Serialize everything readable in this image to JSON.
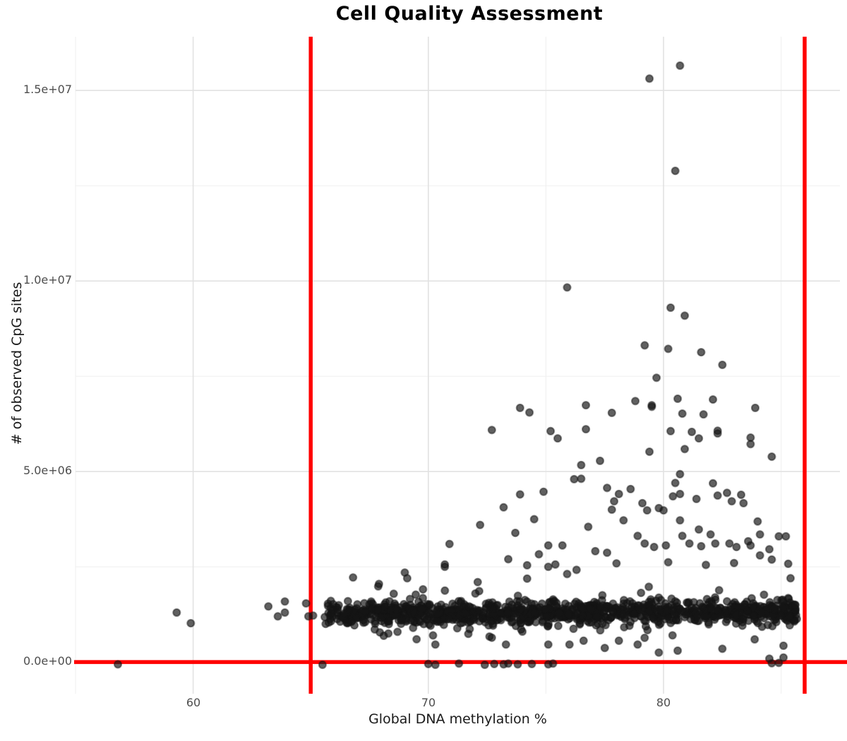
{
  "chart_data": {
    "type": "scatter",
    "title": "Cell Quality Assessment",
    "xlabel": "Global DNA methylation %",
    "ylabel": "# of observed CpG sites",
    "x_range": [
      55.0,
      87.5
    ],
    "y_range": [
      -830000,
      16410000
    ],
    "x_ticks": [
      {
        "value": 60,
        "label": "60"
      },
      {
        "value": 70,
        "label": "70"
      },
      {
        "value": 80,
        "label": "80"
      }
    ],
    "y_ticks": [
      {
        "value": 0,
        "label": "0.0e+00"
      },
      {
        "value": 5000000,
        "label": "5.0e+06"
      },
      {
        "value": 10000000,
        "label": "1.0e+07"
      },
      {
        "value": 15000000,
        "label": "1.5e+07"
      }
    ],
    "x_minor_ticks": [
      55,
      65,
      75,
      85
    ],
    "y_minor_ticks": [
      2500000,
      7500000,
      12500000
    ],
    "grid": {
      "major_color": "#e2e2e2",
      "minor_color": "#f0f0f0"
    },
    "reference_lines": {
      "vertical_x": [
        65,
        86
      ],
      "horizontal_y": [
        0
      ],
      "color": "#ff0000"
    },
    "point_style": {
      "color": "#151515",
      "fill_opacity": 0.68,
      "radius_px": 5.1
    },
    "points_y_unit": "millions of CpG sites",
    "points": [
      [
        56.8,
        -0.06
      ],
      [
        59.3,
        1.3
      ],
      [
        59.9,
        1.02
      ],
      [
        63.2,
        1.46
      ],
      [
        63.6,
        1.2
      ],
      [
        63.9,
        1.59
      ],
      [
        63.9,
        1.3
      ],
      [
        64.8,
        1.54
      ],
      [
        64.9,
        1.2
      ],
      [
        65.1,
        1.22
      ],
      [
        65.5,
        -0.07
      ],
      [
        70.0,
        -0.05
      ],
      [
        70.3,
        -0.07
      ],
      [
        71.3,
        -0.04
      ],
      [
        72.4,
        -0.07
      ],
      [
        72.8,
        -0.05
      ],
      [
        73.2,
        -0.06
      ],
      [
        73.4,
        -0.04
      ],
      [
        73.8,
        -0.06
      ],
      [
        74.4,
        -0.05
      ],
      [
        75.1,
        -0.06
      ],
      [
        75.3,
        -0.04
      ],
      [
        84.6,
        -0.03
      ],
      [
        84.9,
        -0.02
      ],
      [
        70.2,
        0.7
      ],
      [
        70.3,
        0.46
      ],
      [
        71.7,
        0.74
      ],
      [
        72.6,
        0.67
      ],
      [
        72.7,
        0.64
      ],
      [
        73.3,
        0.46
      ],
      [
        74.0,
        0.8
      ],
      [
        75.1,
        0.46
      ],
      [
        76.0,
        0.46
      ],
      [
        76.6,
        0.56
      ],
      [
        77.5,
        0.37
      ],
      [
        78.1,
        0.56
      ],
      [
        78.9,
        0.46
      ],
      [
        80.6,
        0.3
      ],
      [
        84.5,
        0.09
      ],
      [
        85.1,
        0.43
      ],
      [
        85.1,
        0.12
      ],
      [
        82.5,
        0.35
      ],
      [
        79.8,
        0.25
      ],
      [
        68.3,
        0.75
      ],
      [
        69.5,
        0.6
      ],
      [
        66.8,
        2.22
      ],
      [
        67.9,
        2.05
      ],
      [
        69.0,
        2.35
      ],
      [
        69.1,
        2.2
      ],
      [
        70.7,
        2.5
      ],
      [
        70.7,
        2.56
      ],
      [
        72.0,
        1.8
      ],
      [
        72.1,
        2.1
      ],
      [
        73.4,
        2.7
      ],
      [
        74.2,
        2.54
      ],
      [
        74.2,
        2.19
      ],
      [
        74.7,
        2.83
      ],
      [
        75.1,
        2.5
      ],
      [
        75.4,
        2.56
      ],
      [
        75.9,
        2.31
      ],
      [
        76.3,
        2.42
      ],
      [
        78.0,
        2.59
      ],
      [
        80.2,
        2.62
      ],
      [
        81.8,
        2.55
      ],
      [
        83.0,
        2.6
      ],
      [
        84.1,
        2.8
      ],
      [
        84.5,
        2.96
      ],
      [
        84.6,
        2.69
      ],
      [
        85.3,
        2.58
      ],
      [
        85.4,
        2.2
      ],
      [
        70.9,
        3.1
      ],
      [
        72.2,
        3.6
      ],
      [
        73.2,
        4.06
      ],
      [
        73.7,
        3.39
      ],
      [
        73.9,
        4.4
      ],
      [
        74.5,
        3.75
      ],
      [
        74.9,
        4.47
      ],
      [
        75.1,
        3.06
      ],
      [
        75.7,
        3.06
      ],
      [
        76.2,
        4.8
      ],
      [
        76.5,
        4.81
      ],
      [
        76.8,
        3.55
      ],
      [
        77.1,
        2.91
      ],
      [
        77.6,
        2.87
      ],
      [
        77.6,
        4.57
      ],
      [
        77.8,
        4.0
      ],
      [
        77.9,
        4.22
      ],
      [
        78.1,
        4.41
      ],
      [
        78.3,
        3.72
      ],
      [
        78.6,
        4.54
      ],
      [
        78.9,
        3.31
      ],
      [
        79.1,
        4.17
      ],
      [
        79.2,
        3.11
      ],
      [
        79.3,
        3.98
      ],
      [
        79.6,
        3.02
      ],
      [
        79.8,
        4.04
      ],
      [
        80.0,
        3.98
      ],
      [
        80.1,
        3.06
      ],
      [
        80.4,
        4.35
      ],
      [
        80.5,
        4.7
      ],
      [
        80.7,
        4.93
      ],
      [
        80.7,
        4.41
      ],
      [
        80.7,
        3.72
      ],
      [
        80.8,
        3.31
      ],
      [
        81.1,
        3.11
      ],
      [
        81.4,
        4.28
      ],
      [
        81.5,
        3.48
      ],
      [
        81.6,
        3.04
      ],
      [
        82.0,
        3.35
      ],
      [
        82.1,
        4.69
      ],
      [
        82.2,
        3.11
      ],
      [
        82.3,
        4.37
      ],
      [
        82.7,
        4.44
      ],
      [
        82.8,
        3.11
      ],
      [
        82.9,
        4.22
      ],
      [
        83.1,
        3.02
      ],
      [
        83.3,
        4.39
      ],
      [
        83.4,
        4.17
      ],
      [
        83.6,
        3.17
      ],
      [
        83.7,
        3.06
      ],
      [
        84.0,
        3.69
      ],
      [
        84.1,
        3.35
      ],
      [
        84.9,
        3.3
      ],
      [
        85.2,
        3.3
      ],
      [
        72.7,
        6.09
      ],
      [
        73.9,
        6.67
      ],
      [
        74.3,
        6.55
      ],
      [
        75.2,
        6.06
      ],
      [
        75.5,
        5.87
      ],
      [
        76.5,
        5.17
      ],
      [
        76.7,
        6.74
      ],
      [
        76.7,
        6.11
      ],
      [
        77.3,
        5.28
      ],
      [
        77.8,
        6.54
      ],
      [
        78.8,
        6.85
      ],
      [
        79.4,
        5.52
      ],
      [
        79.5,
        6.74
      ],
      [
        79.5,
        6.7
      ],
      [
        80.3,
        6.06
      ],
      [
        80.6,
        6.91
      ],
      [
        80.8,
        6.52
      ],
      [
        80.9,
        5.59
      ],
      [
        81.2,
        6.04
      ],
      [
        81.5,
        5.87
      ],
      [
        81.7,
        6.5
      ],
      [
        82.1,
        6.89
      ],
      [
        82.3,
        6.07
      ],
      [
        82.3,
        6.0
      ],
      [
        83.7,
        5.89
      ],
      [
        83.7,
        5.72
      ],
      [
        83.9,
        6.67
      ],
      [
        84.6,
        5.39
      ],
      [
        79.7,
        7.46
      ],
      [
        82.5,
        7.8
      ],
      [
        81.6,
        8.13
      ],
      [
        80.2,
        8.22
      ],
      [
        79.2,
        8.31
      ],
      [
        75.9,
        9.83
      ],
      [
        80.3,
        9.3
      ],
      [
        80.9,
        9.09
      ],
      [
        80.5,
        12.89
      ],
      [
        79.4,
        15.31
      ],
      [
        80.7,
        15.65
      ]
    ],
    "dense_band": {
      "description": "Dense horizontal band of ~1150 additional cells, individually unresolvable in source image",
      "x_min": 65.5,
      "x_max": 85.7,
      "x_left_tail_fraction": 0.06,
      "x_left_tail_max": 67.1,
      "y_center_millions": 1.3,
      "y_spread_millions": 0.29,
      "y_wide_tail_fraction": 0.09,
      "y_wide_tail_spread_millions": 0.5,
      "y_min_millions": 0.32,
      "y_max_millions": 2.25,
      "count": 1150,
      "seed": 42
    }
  }
}
